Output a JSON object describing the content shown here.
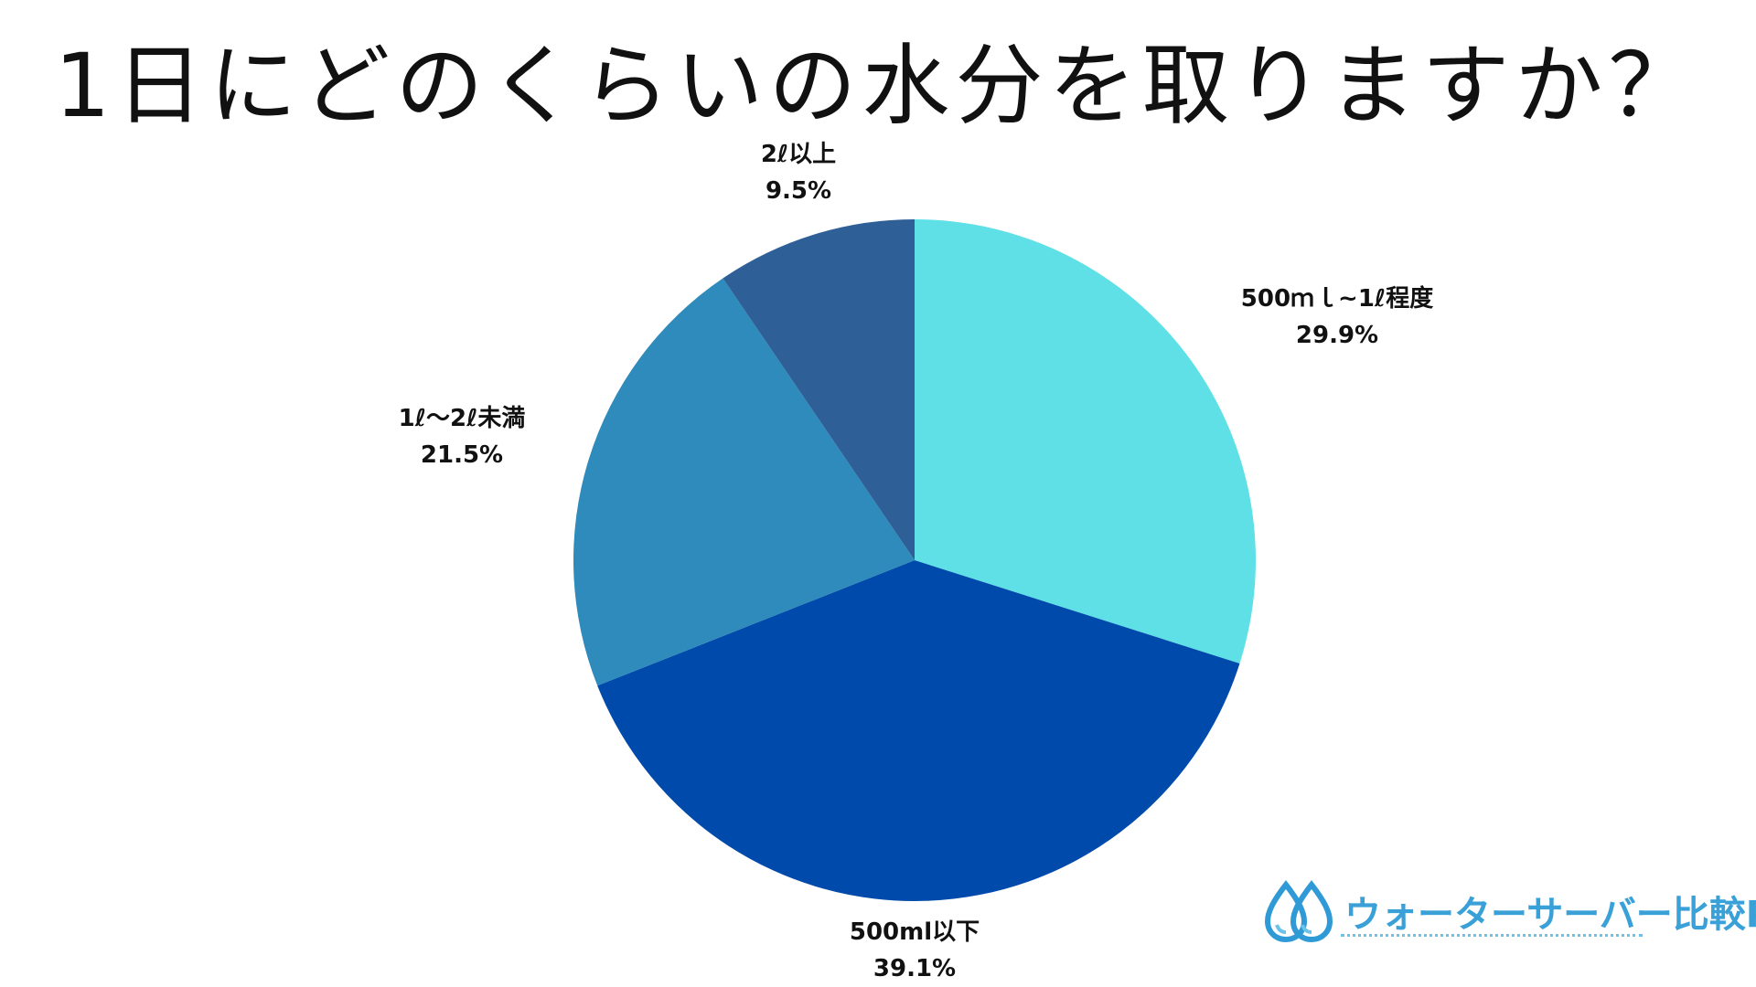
{
  "title": "1日にどのくらいの水分を取りますか？",
  "chart_data": {
    "type": "pie",
    "title": "1日にどのくらいの水分を取りますか？",
    "start_angle_deg": 0,
    "direction": "clockwise",
    "slices": [
      {
        "label": "500ｍｌ~1ℓ程度",
        "value": 29.9,
        "value_label": "29.9%",
        "color": "#5ee0e6"
      },
      {
        "label": "500ml以下",
        "value": 39.1,
        "value_label": "39.1%",
        "color": "#004aab"
      },
      {
        "label": "1ℓ～2ℓ未満",
        "value": 21.5,
        "value_label": "21.5%",
        "color": "#2e8bbb"
      },
      {
        "label": "2ℓ以上",
        "value": 9.5,
        "value_label": "9.5%",
        "color": "#2e5f97"
      }
    ]
  },
  "logo": {
    "name": "ウォーターサーバー比較Plus"
  }
}
